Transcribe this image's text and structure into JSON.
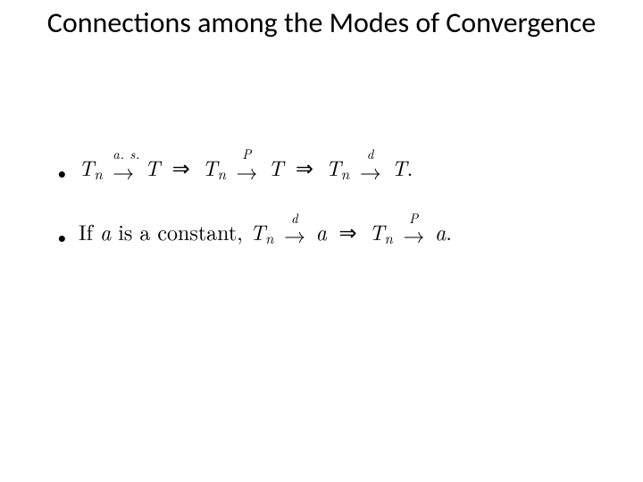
{
  "slide": {
    "title": "Connections among the Modes of Convergence",
    "title_fontsize": 32,
    "body_fontsize": 24,
    "background_color": "#ffffff",
    "text_color": "#000000",
    "body_font": "serif",
    "title_font": "Calibri"
  },
  "item1": {
    "t1": "T",
    "n1": "n",
    "mode1": "a. s.",
    "lim1": "T",
    "t2": "T",
    "n2": "n",
    "mode2": "P",
    "lim2": "T",
    "t3": "T",
    "n3": "n",
    "mode3": "d",
    "lim3": "T",
    "end": "."
  },
  "item2": {
    "prefix_rm": "If ",
    "a1": "a",
    "mid_rm": " is a constant, ",
    "t1": "T",
    "n1": "n",
    "mode1": "d",
    "lim1": "a",
    "t2": "T",
    "n2": "n",
    "mode2": "P",
    "lim2": "a",
    "end": "."
  },
  "sym": {
    "arrow": "→",
    "implies": "⇒"
  }
}
